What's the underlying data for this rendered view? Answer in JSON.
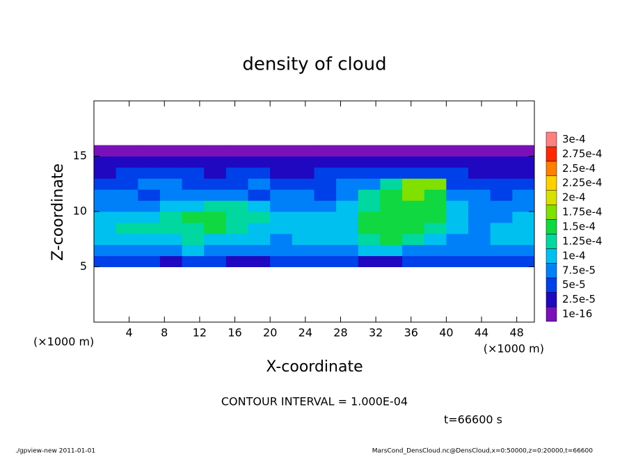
{
  "chart_data": {
    "type": "contour",
    "title": "density of cloud",
    "x_label": "X-coordinate",
    "y_label": "Z-coordinate",
    "x_unit": "(×1000 m)",
    "y_unit": "(×1000 m)",
    "xlim": [
      0,
      50
    ],
    "xticks": [
      4,
      8,
      12,
      16,
      20,
      24,
      28,
      32,
      36,
      40,
      44,
      48
    ],
    "ylim": [
      0,
      20
    ],
    "yticks": [
      5,
      10,
      15
    ],
    "x": [
      1.25,
      3.75,
      6.25,
      8.75,
      11.25,
      13.75,
      16.25,
      18.75,
      21.25,
      23.75,
      26.25,
      28.75,
      31.25,
      33.75,
      36.25,
      38.75,
      41.25,
      43.75,
      46.25,
      48.75
    ],
    "y": [
      5.5,
      6.5,
      7.5,
      8.5,
      9.5,
      10.5,
      11.5,
      12.5,
      13.5,
      14.5,
      15.5
    ],
    "values": [
      [
        6e-05,
        6e-05,
        6e-05,
        4e-05,
        6e-05,
        6e-05,
        4e-05,
        4e-05,
        6e-05,
        6e-05,
        6e-05,
        6e-05,
        4e-05,
        4e-05,
        6e-05,
        6e-05,
        6e-05,
        6e-05,
        6e-05,
        6e-05
      ],
      [
        8.5e-05,
        8.5e-05,
        8.5e-05,
        8.5e-05,
        0.00011,
        8.5e-05,
        8.5e-05,
        8.5e-05,
        8.5e-05,
        8.5e-05,
        8.5e-05,
        8.5e-05,
        0.00011,
        0.00011,
        8.5e-05,
        8.5e-05,
        8.5e-05,
        8.5e-05,
        8.5e-05,
        8.5e-05
      ],
      [
        0.00011,
        0.00011,
        0.00011,
        0.00011,
        0.00014,
        0.00011,
        0.00011,
        0.00011,
        8.5e-05,
        0.00011,
        0.00011,
        0.00011,
        0.00014,
        0.00016,
        0.00014,
        0.00011,
        8.5e-05,
        8.5e-05,
        0.00011,
        0.00011
      ],
      [
        0.00011,
        0.00014,
        0.00014,
        0.00014,
        0.00014,
        0.00016,
        0.00014,
        0.00011,
        0.00011,
        0.00011,
        0.00011,
        0.00011,
        0.00016,
        0.00016,
        0.00016,
        0.00014,
        0.00011,
        8.5e-05,
        0.00011,
        0.00011
      ],
      [
        0.00011,
        0.00011,
        0.00011,
        0.00014,
        0.00016,
        0.00016,
        0.00014,
        0.00014,
        0.00011,
        0.00011,
        0.00011,
        0.00011,
        0.00016,
        0.00016,
        0.00016,
        0.00016,
        0.00011,
        8.5e-05,
        8.5e-05,
        0.00011
      ],
      [
        8.5e-05,
        8.5e-05,
        8.5e-05,
        0.00011,
        0.00011,
        0.00014,
        0.00014,
        0.00011,
        8.5e-05,
        8.5e-05,
        8.5e-05,
        0.00011,
        0.00014,
        0.00016,
        0.00016,
        0.00016,
        0.00011,
        8.5e-05,
        8.5e-05,
        8.5e-05
      ],
      [
        8.5e-05,
        8.5e-05,
        6e-05,
        8.5e-05,
        8.5e-05,
        8.5e-05,
        8.5e-05,
        6e-05,
        8.5e-05,
        8.5e-05,
        6e-05,
        8.5e-05,
        0.00014,
        0.00016,
        0.00018,
        0.00016,
        8.5e-05,
        8.5e-05,
        6e-05,
        8.5e-05
      ],
      [
        6e-05,
        6e-05,
        8.5e-05,
        8.5e-05,
        6e-05,
        6e-05,
        6e-05,
        8.5e-05,
        6e-05,
        6e-05,
        6e-05,
        8.5e-05,
        8.5e-05,
        0.00014,
        0.00018,
        0.00018,
        6e-05,
        6e-05,
        6e-05,
        6e-05
      ],
      [
        4e-05,
        6e-05,
        6e-05,
        6e-05,
        6e-05,
        4e-05,
        6e-05,
        6e-05,
        4e-05,
        4e-05,
        6e-05,
        6e-05,
        6e-05,
        6e-05,
        6e-05,
        6e-05,
        6e-05,
        4e-05,
        4e-05,
        4e-05
      ],
      [
        4e-05,
        4e-05,
        4e-05,
        4e-05,
        4e-05,
        4e-05,
        4e-05,
        4e-05,
        4e-05,
        4e-05,
        4e-05,
        4e-05,
        4e-05,
        4e-05,
        4e-05,
        4e-05,
        4e-05,
        4e-05,
        4e-05,
        4e-05
      ],
      [
        1e-05,
        1e-05,
        1e-05,
        1e-05,
        1e-05,
        1e-05,
        1e-05,
        1e-05,
        1e-05,
        1e-05,
        1e-05,
        1e-05,
        1e-05,
        1e-05,
        1e-05,
        1e-05,
        1e-05,
        1e-05,
        1e-05,
        1e-05
      ]
    ],
    "colorbar": {
      "levels": [
        {
          "value": 1e-16,
          "label": "1e-16"
        },
        {
          "value": 2.5e-05,
          "label": "2.5e-5"
        },
        {
          "value": 5e-05,
          "label": "5e-5"
        },
        {
          "value": 7.5e-05,
          "label": "7.5e-5"
        },
        {
          "value": 0.0001,
          "label": "1e-4"
        },
        {
          "value": 0.000125,
          "label": "1.25e-4"
        },
        {
          "value": 0.00015,
          "label": "1.5e-4"
        },
        {
          "value": 0.000175,
          "label": "1.75e-4"
        },
        {
          "value": 0.0002,
          "label": "2e-4"
        },
        {
          "value": 0.000225,
          "label": "2.25e-4"
        },
        {
          "value": 0.00025,
          "label": "2.5e-4"
        },
        {
          "value": 0.000275,
          "label": "2.75e-4"
        },
        {
          "value": 0.0003,
          "label": "3e-4"
        }
      ],
      "colors": [
        "#7a10b8",
        "#2008c0",
        "#0040e8",
        "#0080f8",
        "#00c0f0",
        "#00d8a0",
        "#10d840",
        "#80e000",
        "#d8e000",
        "#ffd000",
        "#ff8000",
        "#ff2800",
        "#ff8080"
      ]
    },
    "contour_interval": "CONTOUR INTERVAL = 1.000E-04",
    "time": "t=66600 s",
    "footer_left": "./gpview-new  2011-01-01",
    "footer_right": "MarsCond_DensCloud.nc@DensCloud,x=0:50000,z=0:20000,t=66600"
  }
}
